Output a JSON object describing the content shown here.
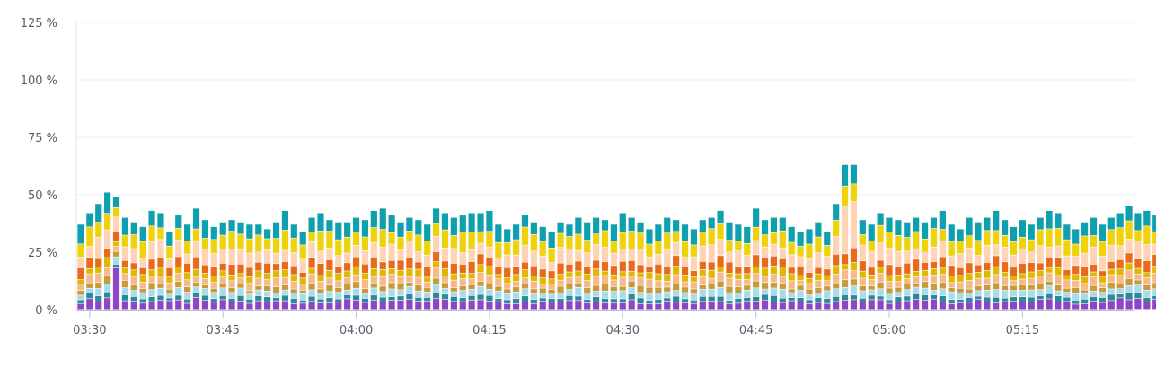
{
  "chart_data": {
    "type": "bar",
    "stacked": true,
    "yticks": [
      "0 %",
      "25 %",
      "50 %",
      "75 %",
      "100 %",
      "125 %"
    ],
    "ylim": [
      0,
      125
    ],
    "xticks": [
      "03:30",
      "03:45",
      "04:00",
      "04:15",
      "04:30",
      "04:45",
      "05:00",
      "05:15"
    ],
    "x_start": "03:28:30",
    "x_end": "05:27:30",
    "bar_interval_minutes": 1,
    "grid": true,
    "legend": "none",
    "series_colors": [
      "#8e44c4",
      "#2a8a9a",
      "#a8dcea",
      "#c89b3a",
      "#f6b98a",
      "#e0b800",
      "#e86a1a",
      "#ffd3b5",
      "#f0d20a",
      "#0fa0b0"
    ],
    "stack_totals": [
      37,
      42,
      46,
      51,
      49,
      40,
      38,
      36,
      43,
      42,
      34,
      41,
      37,
      44,
      39,
      36,
      38,
      39,
      38,
      37,
      37,
      35,
      38,
      43,
      37,
      34,
      40,
      42,
      39,
      38,
      38,
      40,
      39,
      43,
      44,
      41,
      38,
      40,
      39,
      37,
      44,
      42,
      40,
      41,
      42,
      42,
      43,
      37,
      35,
      37,
      41,
      38,
      36,
      34,
      38,
      37,
      40,
      38,
      40,
      39,
      37,
      42,
      40,
      38,
      35,
      37,
      40,
      39,
      37,
      35,
      39,
      40,
      43,
      38,
      37,
      36,
      44,
      39,
      40,
      40,
      36,
      34,
      35,
      38,
      34,
      46,
      63,
      63,
      39,
      37,
      42,
      40,
      39,
      38,
      40,
      38,
      40,
      43,
      37,
      35,
      40,
      38,
      40,
      43,
      39,
      36,
      39,
      37,
      40,
      43,
      42,
      37,
      35,
      38,
      40,
      37,
      40,
      42,
      45,
      42,
      43,
      41,
      38,
      37,
      38,
      40,
      42,
      37
    ]
  }
}
